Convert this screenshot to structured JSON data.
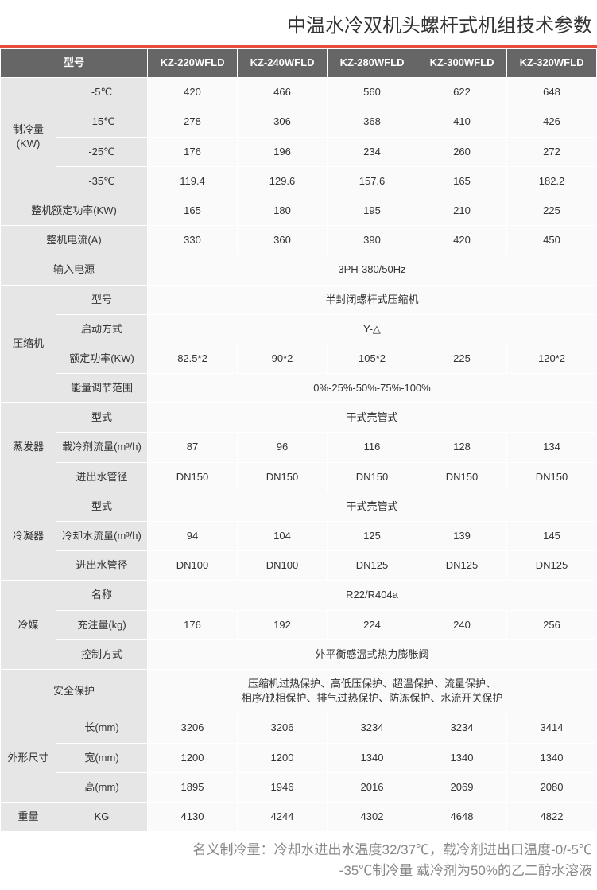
{
  "title": "中温水冷双机头螺杆式机组技术参数",
  "accent_color": "#e74c3c",
  "header": {
    "model_label": "型号",
    "models": [
      "KZ-220WFLD",
      "KZ-240WFLD",
      "KZ-280WFLD",
      "KZ-300WFLD",
      "KZ-320WFLD"
    ]
  },
  "cooling": {
    "group_label": "制冷量(KW)",
    "rows": [
      {
        "label": "-5℃",
        "v": [
          "420",
          "466",
          "560",
          "622",
          "648"
        ]
      },
      {
        "label": "-15℃",
        "v": [
          "278",
          "306",
          "368",
          "410",
          "426"
        ]
      },
      {
        "label": "-25℃",
        "v": [
          "176",
          "196",
          "234",
          "260",
          "272"
        ]
      },
      {
        "label": "-35℃",
        "v": [
          "119.4",
          "129.6",
          "157.6",
          "165",
          "182.2"
        ]
      }
    ]
  },
  "rated_power": {
    "label": "整机额定功率(KW)",
    "v": [
      "165",
      "180",
      "195",
      "210",
      "225"
    ]
  },
  "current": {
    "label": "整机电流(A)",
    "v": [
      "330",
      "360",
      "390",
      "420",
      "450"
    ]
  },
  "power_supply": {
    "label": "输入电源",
    "span": "3PH-380/50Hz"
  },
  "compressor": {
    "group_label": "压缩机",
    "type": {
      "label": "型号",
      "span": "半封闭螺杆式压缩机"
    },
    "start": {
      "label": "启动方式",
      "span": "Y-△"
    },
    "rated": {
      "label": "额定功率(KW)",
      "v": [
        "82.5*2",
        "90*2",
        "105*2",
        "225",
        "120*2"
      ]
    },
    "capacity": {
      "label": "能量调节范围",
      "span": "0%-25%-50%-75%-100%"
    }
  },
  "evaporator": {
    "group_label": "蒸发器",
    "type": {
      "label": "型式",
      "span": "干式壳管式"
    },
    "flow": {
      "label": "载冷剂流量(m³/h)",
      "v": [
        "87",
        "96",
        "116",
        "128",
        "134"
      ]
    },
    "pipe": {
      "label": "进出水管径",
      "v": [
        "DN150",
        "DN150",
        "DN150",
        "DN150",
        "DN150"
      ]
    }
  },
  "condenser": {
    "group_label": "冷凝器",
    "type": {
      "label": "型式",
      "span": "干式壳管式"
    },
    "flow": {
      "label": "冷却水流量(m³/h)",
      "v": [
        "94",
        "104",
        "125",
        "139",
        "145"
      ]
    },
    "pipe": {
      "label": "进出水管径",
      "v": [
        "DN100",
        "DN100",
        "DN125",
        "DN125",
        "DN125"
      ]
    }
  },
  "refrigerant": {
    "group_label": "冷媒",
    "name": {
      "label": "名称",
      "span": "R22/R404a"
    },
    "charge": {
      "label": "充注量(kg)",
      "v": [
        "176",
        "192",
        "224",
        "240",
        "256"
      ]
    },
    "control": {
      "label": "控制方式",
      "span": "外平衡感温式热力膨胀阀"
    }
  },
  "safety": {
    "label": "安全保护",
    "span_line1": "压缩机过热保护、高低压保护、超温保护、流量保护、",
    "span_line2": "相序/缺相保护、排气过热保护、防冻保护、水流开关保护"
  },
  "dimensions": {
    "group_label": "外形尺寸",
    "l": {
      "label": "长(mm)",
      "v": [
        "3206",
        "3206",
        "3234",
        "3234",
        "3414"
      ]
    },
    "w": {
      "label": "宽(mm)",
      "v": [
        "1200",
        "1200",
        "1340",
        "1340",
        "1340"
      ]
    },
    "h": {
      "label": "高(mm)",
      "v": [
        "1895",
        "1946",
        "2016",
        "2069",
        "2080"
      ]
    }
  },
  "weight": {
    "group_label": "重量",
    "label": "KG",
    "v": [
      "4130",
      "4244",
      "4302",
      "4648",
      "4822"
    ]
  },
  "footnote": {
    "line1": "名义制冷量：冷却水进出水温度32/37℃，载冷剂进出口温度-0/-5℃",
    "line2": "-35℃制冷量   载冷剂为50%的乙二醇水溶液"
  }
}
